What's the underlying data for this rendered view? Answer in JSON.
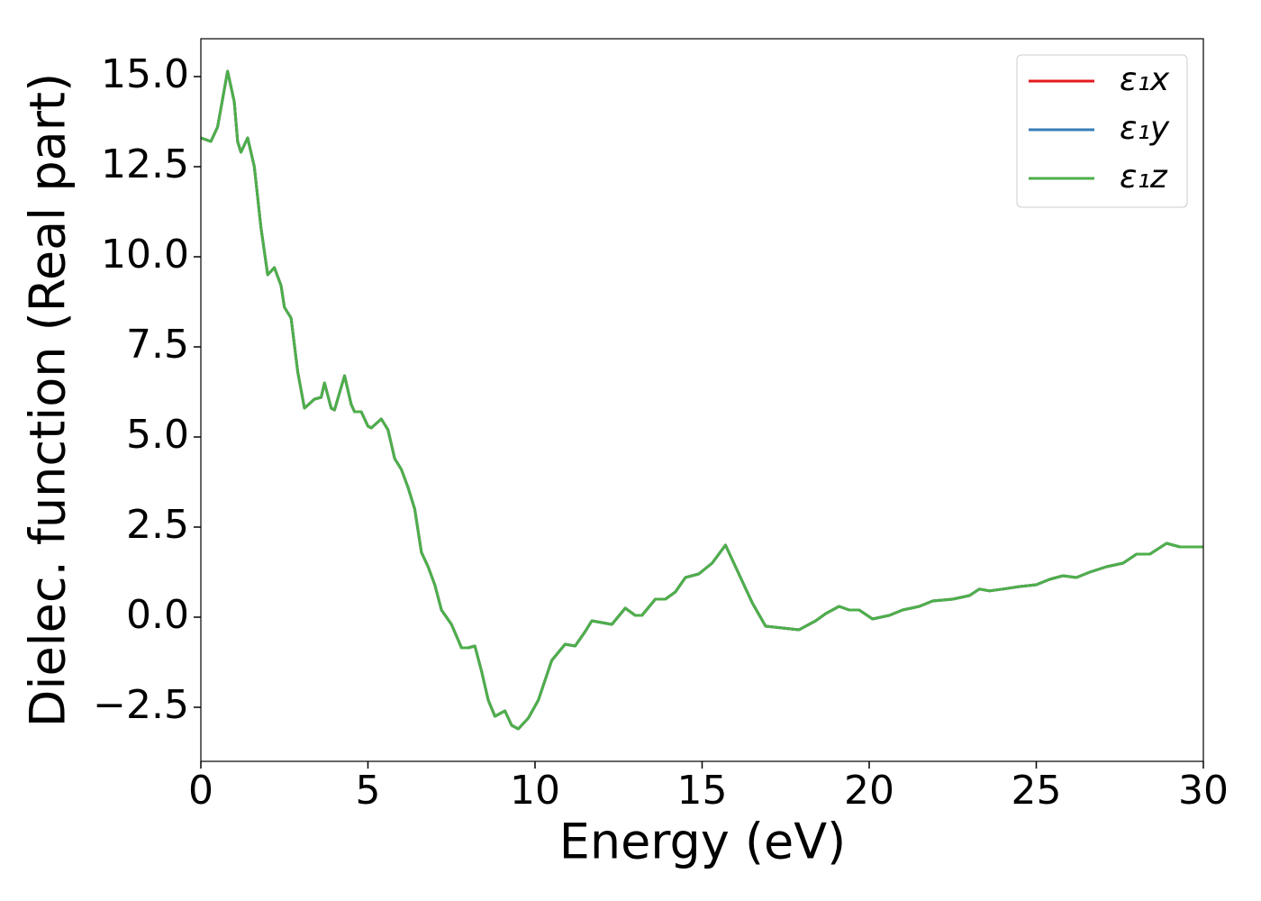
{
  "chart_data": {
    "type": "line",
    "xlabel": "Energy (eV)",
    "ylabel": "Dielec. function (Real part)",
    "xlim": [
      0,
      30
    ],
    "ylim": [
      -4.0,
      16.05
    ],
    "xticks": [
      0,
      5,
      10,
      15,
      20,
      25,
      30
    ],
    "yticks": [
      {
        "value": -2.5,
        "label": "−2.5"
      },
      {
        "value": 0,
        "label": "0.0"
      },
      {
        "value": 2.5,
        "label": "2.5"
      },
      {
        "value": 5,
        "label": "5.0"
      },
      {
        "value": 7.5,
        "label": "7.5"
      },
      {
        "value": 10,
        "label": "10.0"
      },
      {
        "value": 12.5,
        "label": "12.5"
      },
      {
        "value": 15,
        "label": "15.0"
      }
    ],
    "legend": "upper right",
    "x": [
      0,
      0.3,
      0.5,
      0.8,
      1.0,
      1.1,
      1.2,
      1.4,
      1.6,
      1.8,
      2.0,
      2.2,
      2.4,
      2.5,
      2.7,
      2.9,
      3.1,
      3.4,
      3.6,
      3.7,
      3.9,
      4.0,
      4.3,
      4.5,
      4.6,
      4.8,
      5.0,
      5.1,
      5.4,
      5.6,
      5.8,
      6.0,
      6.2,
      6.4,
      6.6,
      6.8,
      7.0,
      7.2,
      7.5,
      7.8,
      8.0,
      8.2,
      8.4,
      8.6,
      8.8,
      9.1,
      9.3,
      9.5,
      9.8,
      10.1,
      10.5,
      10.9,
      11.2,
      11.5,
      11.7,
      12.0,
      12.3,
      12.7,
      13.0,
      13.2,
      13.6,
      13.9,
      14.2,
      14.5,
      14.9,
      15.3,
      15.7,
      16.1,
      16.5,
      16.9,
      17.4,
      17.9,
      18.4,
      18.7,
      19.1,
      19.4,
      19.7,
      20.1,
      20.6,
      21.0,
      21.5,
      21.9,
      22.5,
      23.0,
      23.3,
      23.6,
      24.0,
      24.5,
      25.0,
      25.4,
      25.8,
      26.2,
      26.6,
      27.1,
      27.6,
      28.0,
      28.4,
      28.9,
      29.3,
      30.0
    ],
    "series": [
      {
        "name": "ε₁x",
        "color": "#e41a1c",
        "values": [
          13.3,
          13.2,
          13.6,
          15.15,
          14.3,
          13.2,
          12.9,
          13.3,
          12.5,
          10.8,
          9.5,
          9.7,
          9.2,
          8.6,
          8.3,
          6.8,
          5.8,
          6.05,
          6.1,
          6.5,
          5.8,
          5.75,
          6.7,
          5.9,
          5.7,
          5.7,
          5.3,
          5.25,
          5.5,
          5.2,
          4.4,
          4.1,
          3.6,
          3.0,
          1.8,
          1.4,
          0.9,
          0.2,
          -0.2,
          -0.85,
          -0.85,
          -0.8,
          -1.5,
          -2.3,
          -2.75,
          -2.6,
          -3.0,
          -3.1,
          -2.8,
          -2.3,
          -1.2,
          -0.75,
          -0.8,
          -0.4,
          -0.1,
          -0.15,
          -0.2,
          0.25,
          0.05,
          0.05,
          0.5,
          0.5,
          0.7,
          1.1,
          1.2,
          1.5,
          2.0,
          1.2,
          0.4,
          -0.25,
          -0.3,
          -0.35,
          -0.1,
          0.1,
          0.3,
          0.2,
          0.2,
          -0.05,
          0.05,
          0.2,
          0.3,
          0.45,
          0.5,
          0.6,
          0.78,
          0.73,
          0.78,
          0.85,
          0.9,
          1.05,
          1.15,
          1.1,
          1.25,
          1.4,
          1.5,
          1.75,
          1.75,
          2.05,
          1.95,
          1.95
        ]
      },
      {
        "name": "ε₁y",
        "color": "#377eb8",
        "values": [
          13.3,
          13.2,
          13.6,
          15.15,
          14.3,
          13.2,
          12.9,
          13.3,
          12.5,
          10.8,
          9.5,
          9.7,
          9.2,
          8.6,
          8.3,
          6.8,
          5.8,
          6.05,
          6.1,
          6.5,
          5.8,
          5.75,
          6.7,
          5.9,
          5.7,
          5.7,
          5.3,
          5.25,
          5.5,
          5.2,
          4.4,
          4.1,
          3.6,
          3.0,
          1.8,
          1.4,
          0.9,
          0.2,
          -0.2,
          -0.85,
          -0.85,
          -0.8,
          -1.5,
          -2.3,
          -2.75,
          -2.6,
          -3.0,
          -3.1,
          -2.8,
          -2.3,
          -1.2,
          -0.75,
          -0.8,
          -0.4,
          -0.1,
          -0.15,
          -0.2,
          0.25,
          0.05,
          0.05,
          0.5,
          0.5,
          0.7,
          1.1,
          1.2,
          1.5,
          2.0,
          1.2,
          0.4,
          -0.25,
          -0.3,
          -0.35,
          -0.1,
          0.1,
          0.3,
          0.2,
          0.2,
          -0.05,
          0.05,
          0.2,
          0.3,
          0.45,
          0.5,
          0.6,
          0.78,
          0.73,
          0.78,
          0.85,
          0.9,
          1.05,
          1.15,
          1.1,
          1.25,
          1.4,
          1.5,
          1.75,
          1.75,
          2.05,
          1.95,
          1.95
        ]
      },
      {
        "name": "ε₁z",
        "color": "#4daf4a",
        "values": [
          13.3,
          13.2,
          13.6,
          15.15,
          14.3,
          13.2,
          12.9,
          13.3,
          12.5,
          10.8,
          9.5,
          9.7,
          9.2,
          8.6,
          8.3,
          6.8,
          5.8,
          6.05,
          6.1,
          6.5,
          5.8,
          5.75,
          6.7,
          5.9,
          5.7,
          5.7,
          5.3,
          5.25,
          5.5,
          5.2,
          4.4,
          4.1,
          3.6,
          3.0,
          1.8,
          1.4,
          0.9,
          0.2,
          -0.2,
          -0.85,
          -0.85,
          -0.8,
          -1.5,
          -2.3,
          -2.75,
          -2.6,
          -3.0,
          -3.1,
          -2.8,
          -2.3,
          -1.2,
          -0.75,
          -0.8,
          -0.4,
          -0.1,
          -0.15,
          -0.2,
          0.25,
          0.05,
          0.05,
          0.5,
          0.5,
          0.7,
          1.1,
          1.2,
          1.5,
          2.0,
          1.2,
          0.4,
          -0.25,
          -0.3,
          -0.35,
          -0.1,
          0.1,
          0.3,
          0.2,
          0.2,
          -0.05,
          0.05,
          0.2,
          0.3,
          0.45,
          0.5,
          0.6,
          0.78,
          0.73,
          0.78,
          0.85,
          0.9,
          1.05,
          1.15,
          1.1,
          1.25,
          1.4,
          1.5,
          1.75,
          1.75,
          2.05,
          1.95,
          1.95
        ]
      }
    ]
  }
}
